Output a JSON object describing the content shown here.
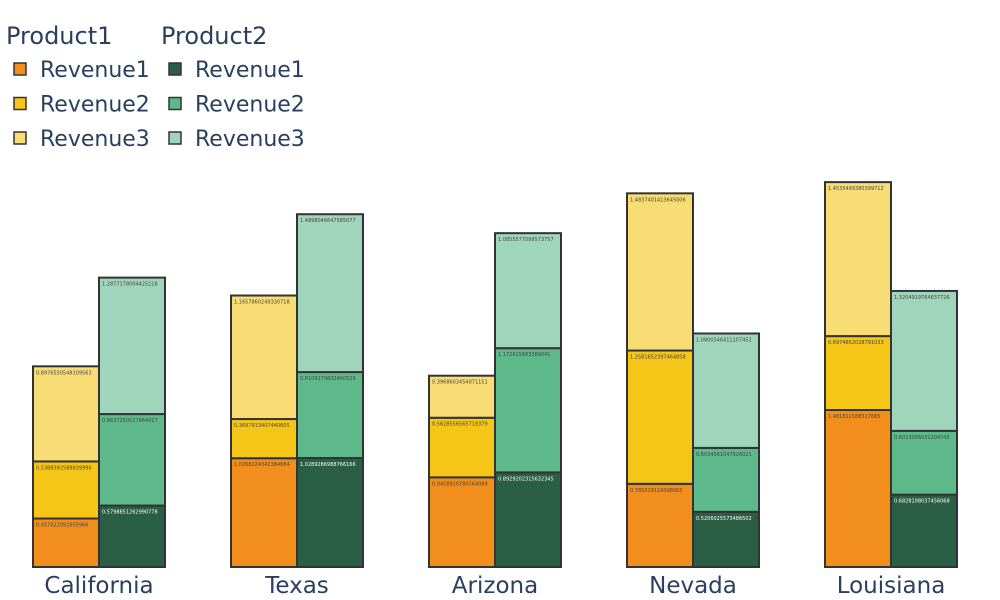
{
  "chart_data": {
    "type": "bar",
    "barmode": "stacked-grouped",
    "categories": [
      "California",
      "Texas",
      "Arizona",
      "Nevada",
      "Louisiana"
    ],
    "groups": [
      {
        "name": "Product1",
        "series": [
          {
            "name": "Revenue1",
            "color": "#f28f1c",
            "values": [
              0.457622092655966,
              1.0268224342384684,
              0.8458920780564089,
              0.785019116098063,
              1.481812188317665
            ]
          },
          {
            "name": "Revenue2",
            "color": "#f5c518",
            "values": [
              0.5388392589839996,
              0.3697913407440605,
              0.5628556565718379,
              1.2581652397464858,
              0.6974852028791033
            ]
          },
          {
            "name": "Revenue3",
            "color": "#f8dc74",
            "values": [
              0.8976550548109563,
              1.1657860249330718,
              0.3968603454071151,
              1.4837401413645006,
              1.4535499380399712
            ]
          }
        ]
      },
      {
        "name": "Product2",
        "series": [
          {
            "name": "Revenue1",
            "color": "#2a5e45",
            "values": [
              0.5798851262990778,
              1.0289286988766166,
              0.8929202315632345,
              0.5206025573486502,
              0.6828108037456068
            ]
          },
          {
            "name": "Revenue2",
            "color": "#5db98a",
            "values": [
              0.8637250527664417,
              0.8109179802460529,
              1.172615683389041,
              0.6034561047526021,
              0.6023006031204745
            ]
          },
          {
            "name": "Revenue3",
            "color": "#9fd6bb",
            "values": [
              1.2877178004425218,
              1.4898046647585077,
              1.0855577099573757,
              1.0800546411107452,
              1.3204919764637726
            ]
          }
        ]
      }
    ],
    "ylim": [
      0,
      3.7
    ],
    "legend": "top-left",
    "grid": false
  }
}
